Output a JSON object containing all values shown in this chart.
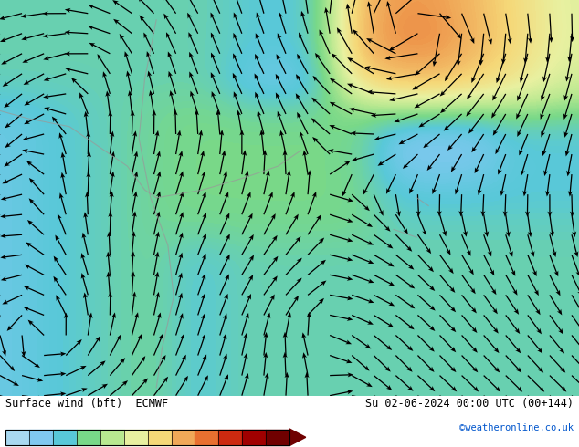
{
  "title_left": "Surface wind (bft)  ECMWF",
  "title_right": "Su 02-06-2024 00:00 UTC (00+144)",
  "credit": "©weatheronline.co.uk",
  "colorbar_colors": [
    "#a8d8f0",
    "#80c8f0",
    "#58c8d8",
    "#78d888",
    "#b8e890",
    "#e8f0a0",
    "#f5d878",
    "#f0a858",
    "#e87030",
    "#cc2a10",
    "#a00000",
    "#700000"
  ],
  "bg_color": "#ffffff",
  "figsize": [
    6.34,
    4.9
  ],
  "dpi": 100
}
